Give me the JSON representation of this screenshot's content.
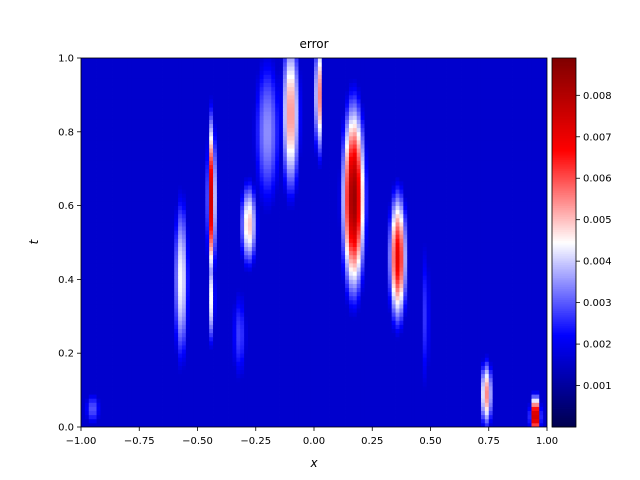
{
  "chart_data": {
    "type": "heatmap",
    "title": "error",
    "xlabel": "x",
    "ylabel": "t",
    "xlim": [
      -1.0,
      1.0
    ],
    "ylim": [
      0.0,
      1.0
    ],
    "xticks": [
      "−1.00",
      "−0.75",
      "−0.50",
      "−0.25",
      "0.00",
      "0.25",
      "0.50",
      "0.75",
      "1.00"
    ],
    "yticks": [
      "0.0",
      "0.2",
      "0.4",
      "0.6",
      "0.8",
      "1.0"
    ],
    "colorbar": {
      "colormap": "seismic",
      "min": 0.0,
      "max": 0.0089,
      "ticks": [
        "0.001",
        "0.002",
        "0.003",
        "0.004",
        "0.005",
        "0.006",
        "0.007",
        "0.008"
      ]
    },
    "features": [
      {
        "x": 0.17,
        "t": 0.62,
        "sx": 0.035,
        "st": 0.18,
        "value": 0.0085
      },
      {
        "x": -0.44,
        "t": 0.62,
        "sx": 0.013,
        "st": 0.16,
        "value": 0.0075
      },
      {
        "x": -0.44,
        "t": 0.35,
        "sx": 0.012,
        "st": 0.1,
        "value": 0.0045
      },
      {
        "x": 0.36,
        "t": 0.46,
        "sx": 0.028,
        "st": 0.13,
        "value": 0.007
      },
      {
        "x": 0.02,
        "t": 0.9,
        "sx": 0.012,
        "st": 0.13,
        "value": 0.006
      },
      {
        "x": -0.1,
        "t": 0.85,
        "sx": 0.03,
        "st": 0.17,
        "value": 0.0055
      },
      {
        "x": -0.57,
        "t": 0.4,
        "sx": 0.025,
        "st": 0.18,
        "value": 0.0045
      },
      {
        "x": -0.28,
        "t": 0.55,
        "sx": 0.028,
        "st": 0.09,
        "value": 0.005
      },
      {
        "x": 0.74,
        "t": 0.09,
        "sx": 0.02,
        "st": 0.07,
        "value": 0.0055
      },
      {
        "x": 0.95,
        "t": 0.03,
        "sx": 0.016,
        "st": 0.04,
        "value": 0.0085
      },
      {
        "x": -0.2,
        "t": 0.8,
        "sx": 0.05,
        "st": 0.18,
        "value": 0.0035
      },
      {
        "x": -0.32,
        "t": 0.25,
        "sx": 0.03,
        "st": 0.12,
        "value": 0.0028
      },
      {
        "x": 0.48,
        "t": 0.3,
        "sx": 0.015,
        "st": 0.2,
        "value": 0.0028
      },
      {
        "x": -0.95,
        "t": 0.05,
        "sx": 0.03,
        "st": 0.04,
        "value": 0.003
      }
    ],
    "background": 0.0016
  }
}
